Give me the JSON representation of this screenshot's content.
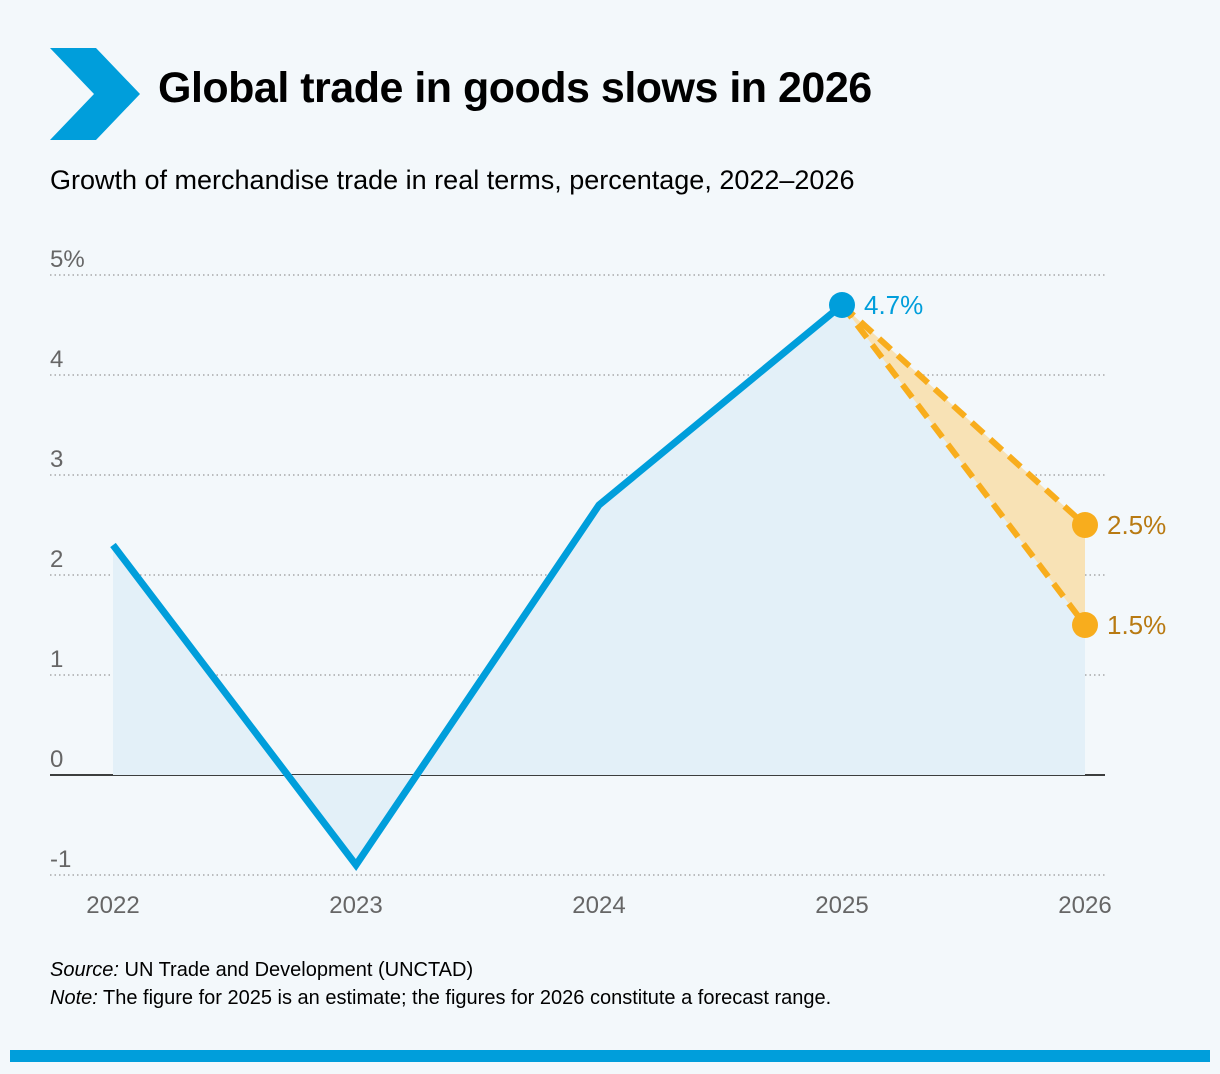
{
  "header": {
    "title": "Global trade in goods slows in 2026",
    "subtitle": "Growth of merchandise trade in real terms, percentage, 2022–2026",
    "logo_icon": "chevron-right-icon"
  },
  "colors": {
    "background": "#f3f8fb",
    "brand_blue": "#009edb",
    "area_fill": "#e3f0f8",
    "forecast_orange": "#f8ad1d",
    "forecast_fill": "#f8e2b5",
    "forecast_label": "#b87a12",
    "gridline": "#999999"
  },
  "chart_data": {
    "type": "line",
    "title": "Global trade in goods slows in 2026",
    "subtitle": "Growth of merchandise trade in real terms, percentage, 2022–2026",
    "xlabel": "",
    "ylabel": "",
    "categories": [
      "2022",
      "2023",
      "2024",
      "2025",
      "2026"
    ],
    "series": [
      {
        "values": [
          2.3,
          -0.9,
          2.7,
          4.7,
          null
        ]
      }
    ],
    "forecast": {
      "from": "2025",
      "to": "2026",
      "high": 2.5,
      "low": 1.5,
      "style": "dashed range"
    },
    "data_labels": [
      {
        "category": "2025",
        "value": 4.7,
        "text": "4.7%"
      },
      {
        "category": "2026",
        "value": 2.5,
        "text": "2.5%"
      },
      {
        "category": "2026",
        "value": 1.5,
        "text": "1.5%"
      }
    ],
    "y_ticks": [
      {
        "value": 5,
        "label": "5%"
      },
      {
        "value": 4,
        "label": "4"
      },
      {
        "value": 3,
        "label": "3"
      },
      {
        "value": 2,
        "label": "2"
      },
      {
        "value": 1,
        "label": "1"
      },
      {
        "value": 0,
        "label": "0"
      },
      {
        "value": -1,
        "label": "-1"
      }
    ],
    "ylim": [
      -1,
      5
    ],
    "grid": true,
    "legend": "none"
  },
  "footer": {
    "source_label": "Source:",
    "source_text": " UN Trade and Development (UNCTAD)",
    "note_label": "Note:",
    "note_text": " The figure for 2025 is an estimate; the figures for 2026 constitute a forecast range."
  }
}
